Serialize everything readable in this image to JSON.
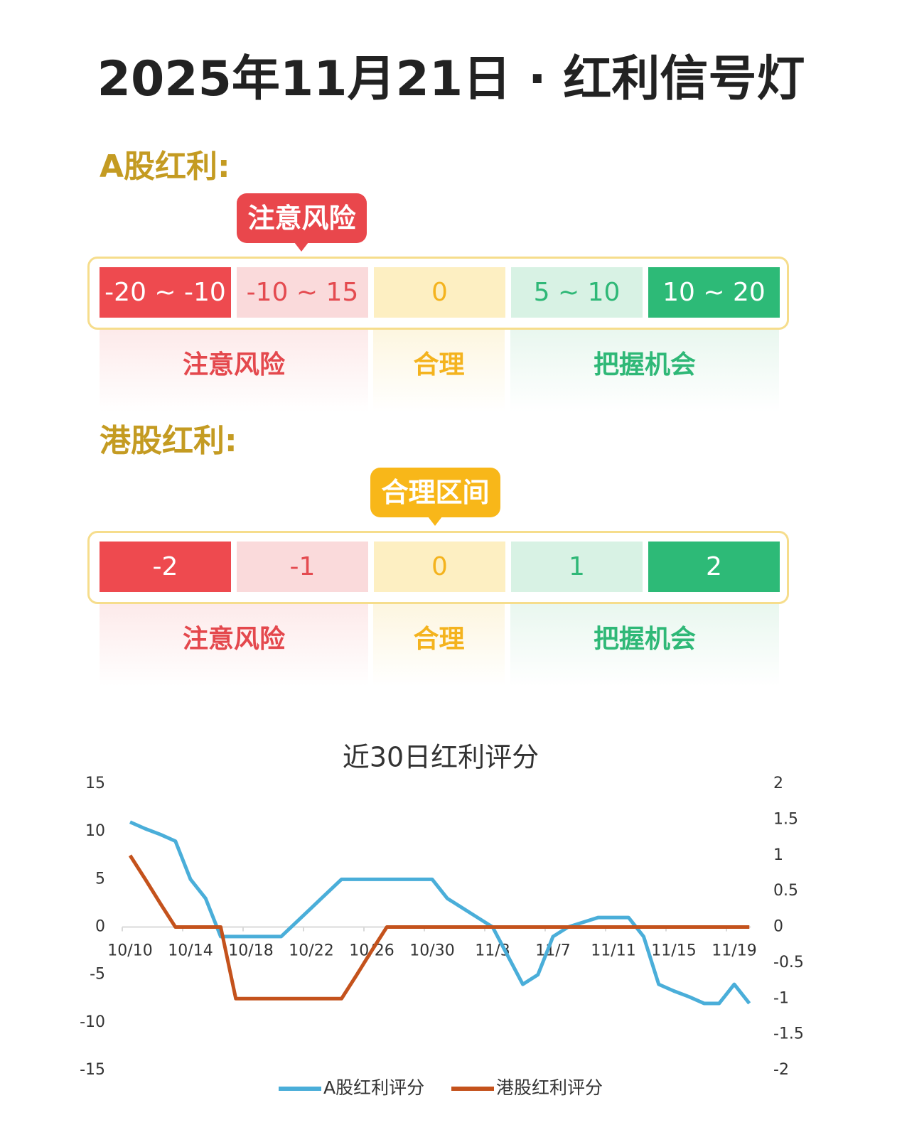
{
  "title": "2025年11月21日 · 红利信号灯",
  "sections": [
    {
      "heading": "A股红利:",
      "badge": "注意风险",
      "levels": [
        "-20 ~ -10",
        "-10 ~ 15",
        "0",
        "5 ~ 10",
        "10 ~ 20"
      ],
      "zones": [
        "注意风险",
        "合理",
        "把握机会"
      ]
    },
    {
      "heading": "港股红利:",
      "badge": "合理区间",
      "levels": [
        "-2",
        "-1",
        "0",
        "1",
        "2"
      ],
      "zones": [
        "注意风险",
        "合理",
        "把握机会"
      ]
    }
  ],
  "chart_data": {
    "type": "line",
    "title": "近30日红利评分",
    "categories": [
      "10/10",
      null,
      null,
      null,
      "10/14",
      null,
      null,
      null,
      "10/18",
      null,
      null,
      null,
      "10/22",
      null,
      null,
      null,
      "10/26",
      null,
      null,
      null,
      "10/30",
      null,
      null,
      null,
      "11/3",
      null,
      null,
      null,
      "11/7",
      null,
      null,
      null,
      "11/11",
      null,
      null,
      null,
      "11/15",
      null,
      null,
      null,
      "11/19",
      null
    ],
    "series": [
      {
        "name": "A股红利评分",
        "color": "#4aaed9",
        "values": [
          11,
          10.3,
          9.7,
          9,
          5,
          3,
          -1,
          -1,
          -1,
          -1,
          -1,
          0.5,
          2,
          3.5,
          5,
          5,
          5,
          5,
          5,
          5,
          5,
          3,
          2,
          1,
          0,
          -3,
          -6,
          -5,
          -1,
          0,
          0.5,
          1,
          1,
          1,
          -1,
          -6,
          -6.7,
          -7.3,
          -8,
          -8,
          -6,
          -8
        ]
      },
      {
        "name": "港股红利评分",
        "color": "#c4521c",
        "axis": "y2",
        "values": [
          1,
          0.67,
          0.33,
          0,
          0,
          0,
          0,
          -1,
          -1,
          -1,
          -1,
          -1,
          -1,
          -1,
          -1,
          -0.67,
          -0.33,
          0,
          0,
          0,
          0,
          0,
          0,
          0,
          0,
          0,
          0,
          0,
          0,
          0,
          0,
          0,
          0,
          0,
          0,
          0,
          0,
          0,
          0,
          0,
          0,
          0
        ]
      }
    ],
    "ylim": [
      -15,
      15
    ],
    "yticks": [
      15,
      10,
      5,
      0,
      -5,
      -10,
      -15
    ],
    "y2lim": [
      -2,
      2
    ],
    "y2ticks": [
      2,
      1.5,
      1,
      0.5,
      0,
      -0.5,
      -1,
      -1.5,
      -2
    ],
    "legend": "bottom"
  }
}
